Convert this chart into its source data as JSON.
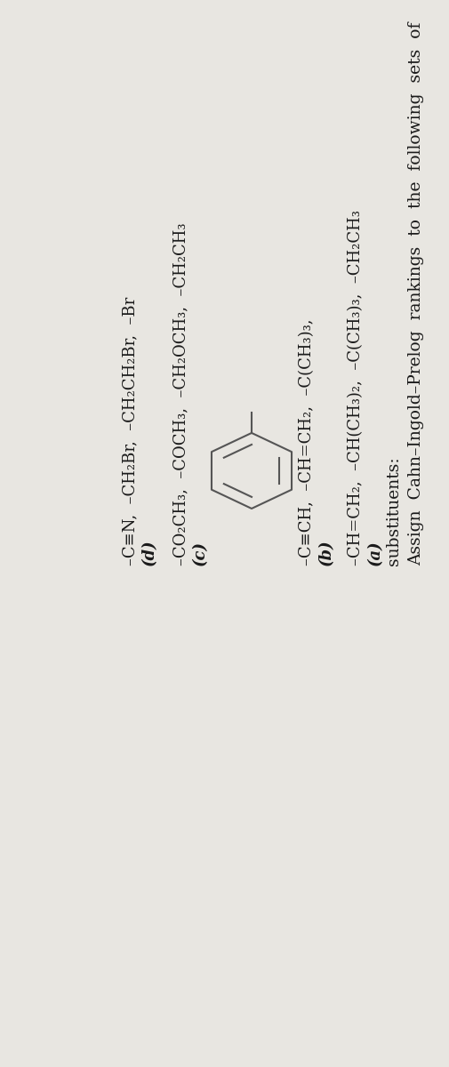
{
  "bg_color": "#e8e6e1",
  "text_color": "#1a1a1a",
  "title_line1": "Assign  Cahn–Ingold–Prelog  rankings  to  the  following  sets  of",
  "title_line2": "substituents:",
  "a_label": "(a)",
  "a_text": "–CH=CH₂,  –CH(CH₃)₂,  –C(CH₃)₃,  –CH₂CH₃",
  "b_label": "(b)",
  "b_text": "–C≡CH,  –CH=CH₂,  –C(CH₃)₃,",
  "c_label": "(c)",
  "c_text": "–CO₂CH₃,  –COCH₃,  –CH₂OCH₃,  –CH₂CH₃",
  "d_label": "(d)",
  "d_text": "–C≡N,  –CH₂Br,  –CH₂CH₂Br,  –Br",
  "font_size_title": 13.5,
  "font_size_body": 13.0,
  "font_size_label": 13.0,
  "line_color": "#555555"
}
